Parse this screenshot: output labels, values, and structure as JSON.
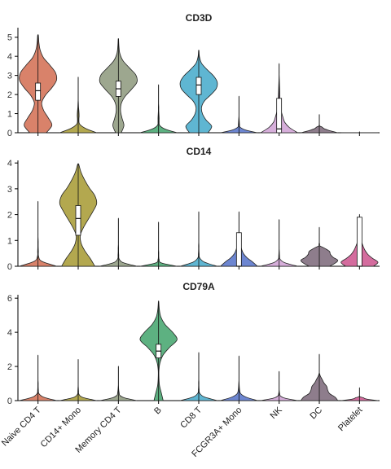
{
  "chart_data": {
    "type": "violin",
    "categories": [
      "Naive CD4 T",
      "CD14+ Mono",
      "Memory CD4 T",
      "B",
      "CD8 T",
      "FCGR3A+ Mono",
      "NK",
      "DC",
      "Platelet"
    ],
    "colors": [
      "#D9826A",
      "#B3A84F",
      "#9DA78F",
      "#5DB181",
      "#5FB6D2",
      "#6D86D1",
      "#D6AEDA",
      "#8E7D8C",
      "#D46C9E"
    ],
    "grid": false,
    "legend": "none",
    "panels": [
      {
        "title": "CD3D",
        "ylim": [
          0,
          5.5
        ],
        "yticks": [
          0,
          1,
          2,
          3,
          4,
          5
        ],
        "violins": [
          {
            "category": "Naive CD4 T",
            "max": 5.1,
            "median": 2.2,
            "q1": 1.7,
            "q3": 2.6,
            "shape": [
              0.45,
              0.75,
              0.55,
              0.3,
              0.2,
              0.4,
              0.75,
              1.0,
              0.95,
              0.65,
              0.3,
              0.12,
              0.05,
              0.02
            ],
            "box": true
          },
          {
            "category": "CD14+ Mono",
            "max": 2.9,
            "median": 0.0,
            "q1": 0.0,
            "q3": 0.0,
            "shape": [
              1.0,
              0.4,
              0.08,
              0.04,
              0.05,
              0.04,
              0.02,
              0.01,
              0,
              0,
              0,
              0,
              0,
              0
            ],
            "box": false
          },
          {
            "category": "Memory CD4 T",
            "max": 4.9,
            "median": 2.3,
            "q1": 1.9,
            "q3": 2.7,
            "shape": [
              0.15,
              0.3,
              0.2,
              0.12,
              0.15,
              0.35,
              0.7,
              1.0,
              0.95,
              0.6,
              0.25,
              0.08,
              0.03,
              0.01
            ],
            "box": true
          },
          {
            "category": "B",
            "max": 2.5,
            "median": 0.0,
            "q1": 0.0,
            "q3": 0.0,
            "shape": [
              1.0,
              0.35,
              0.06,
              0.03,
              0.03,
              0.02,
              0.01,
              0.01,
              0,
              0,
              0,
              0,
              0,
              0
            ],
            "box": false
          },
          {
            "category": "CD8 T",
            "max": 4.3,
            "median": 2.5,
            "q1": 2.0,
            "q3": 2.9,
            "shape": [
              0.5,
              0.7,
              0.4,
              0.2,
              0.15,
              0.3,
              0.65,
              0.95,
              1.0,
              0.8,
              0.45,
              0.15,
              0.04,
              0.01
            ],
            "box": true
          },
          {
            "category": "FCGR3A+ Mono",
            "max": 1.9,
            "median": 0.0,
            "q1": 0.0,
            "q3": 0.0,
            "shape": [
              1.0,
              0.35,
              0.06,
              0.03,
              0.02,
              0.01,
              0,
              0,
              0,
              0,
              0,
              0,
              0,
              0
            ],
            "box": false
          },
          {
            "category": "NK",
            "max": 3.6,
            "median": 0.2,
            "q1": 0.0,
            "q3": 1.8,
            "shape": [
              1.0,
              0.55,
              0.3,
              0.2,
              0.12,
              0.08,
              0.05,
              0.04,
              0.03,
              0.02,
              0.01,
              0,
              0,
              0
            ],
            "box": true
          },
          {
            "category": "DC",
            "max": 0.95,
            "median": 0.0,
            "q1": 0.0,
            "q3": 0.0,
            "shape": [
              1.0,
              0.7,
              0.45,
              0.25,
              0.15,
              0,
              0,
              0,
              0,
              0,
              0,
              0,
              0,
              0
            ],
            "box": false
          },
          {
            "category": "Platelet",
            "max": 0.05,
            "median": 0.0,
            "q1": 0.0,
            "q3": 0.0,
            "shape": [
              1.0,
              0,
              0,
              0,
              0,
              0,
              0,
              0,
              0,
              0,
              0,
              0,
              0,
              0
            ],
            "box": false
          }
        ]
      },
      {
        "title": "CD14",
        "ylim": [
          0,
          4.1
        ],
        "yticks": [
          0,
          1,
          2,
          3,
          4
        ],
        "violins": [
          {
            "category": "Naive CD4 T",
            "max": 2.5,
            "median": 0.0,
            "q1": 0.0,
            "q3": 0.0,
            "shape": [
              1.0,
              0.2,
              0.03,
              0.02,
              0.01,
              0.01,
              0,
              0,
              0,
              0,
              0,
              0,
              0,
              0
            ],
            "box": false
          },
          {
            "category": "CD14+ Mono",
            "max": 3.95,
            "median": 1.85,
            "q1": 1.2,
            "q3": 2.35,
            "shape": [
              0.9,
              0.65,
              0.35,
              0.15,
              0.12,
              0.3,
              0.55,
              0.8,
              1.0,
              0.9,
              0.6,
              0.35,
              0.15,
              0.03
            ],
            "box": true
          },
          {
            "category": "Memory CD4 T",
            "max": 1.85,
            "median": 0.0,
            "q1": 0.0,
            "q3": 0.0,
            "shape": [
              1.0,
              0.25,
              0.04,
              0.02,
              0.01,
              0.01,
              0,
              0,
              0,
              0,
              0,
              0,
              0,
              0
            ],
            "box": false
          },
          {
            "category": "B",
            "max": 1.7,
            "median": 0.0,
            "q1": 0.0,
            "q3": 0.0,
            "shape": [
              1.0,
              0.15,
              0.03,
              0.01,
              0.01,
              0,
              0,
              0,
              0,
              0,
              0,
              0,
              0,
              0
            ],
            "box": false
          },
          {
            "category": "CD8 T",
            "max": 2.1,
            "median": 0.0,
            "q1": 0.0,
            "q3": 0.0,
            "shape": [
              1.0,
              0.3,
              0.05,
              0.02,
              0.01,
              0.01,
              0,
              0,
              0,
              0,
              0,
              0,
              0,
              0
            ],
            "box": false
          },
          {
            "category": "FCGR3A+ Mono",
            "max": 2.1,
            "median": 0.0,
            "q1": 0.0,
            "q3": 1.3,
            "shape": [
              1.0,
              0.75,
              0.45,
              0.25,
              0.15,
              0.1,
              0.05,
              0.02,
              0,
              0,
              0,
              0,
              0,
              0
            ],
            "box": true
          },
          {
            "category": "NK",
            "max": 1.8,
            "median": 0.0,
            "q1": 0.0,
            "q3": 0.0,
            "shape": [
              1.0,
              0.3,
              0.05,
              0.02,
              0.01,
              0,
              0,
              0,
              0,
              0,
              0,
              0,
              0,
              0
            ],
            "box": false
          },
          {
            "category": "DC",
            "max": 1.5,
            "median": 0.0,
            "q1": 0.0,
            "q3": 0.0,
            "shape": [
              0.55,
              0.85,
              1.0,
              0.75,
              0.6,
              0.55,
              0.3,
              0,
              0,
              0,
              0,
              0,
              0,
              0
            ],
            "box": false
          },
          {
            "category": "Platelet",
            "max": 2.0,
            "median": 0.0,
            "q1": 0.0,
            "q3": 1.9,
            "shape": [
              0.75,
              1.0,
              0.7,
              0.45,
              0.3,
              0.2,
              0.12,
              0.08,
              0.05,
              0.03,
              0,
              0,
              0,
              0
            ],
            "box": true
          }
        ]
      },
      {
        "title": "CD79A",
        "ylim": [
          0,
          6.2
        ],
        "yticks": [
          0,
          2,
          4,
          6
        ],
        "violins": [
          {
            "category": "Naive CD4 T",
            "max": 2.65,
            "median": 0.0,
            "q1": 0.0,
            "q3": 0.0,
            "shape": [
              1.0,
              0.3,
              0.05,
              0.02,
              0.01,
              0.01,
              0,
              0,
              0,
              0,
              0,
              0,
              0,
              0
            ],
            "box": false
          },
          {
            "category": "CD14+ Mono",
            "max": 2.4,
            "median": 0.0,
            "q1": 0.0,
            "q3": 0.0,
            "shape": [
              1.0,
              0.25,
              0.04,
              0.02,
              0.01,
              0,
              0,
              0,
              0,
              0,
              0,
              0,
              0,
              0
            ],
            "box": false
          },
          {
            "category": "Memory CD4 T",
            "max": 2.0,
            "median": 0.0,
            "q1": 0.0,
            "q3": 0.0,
            "shape": [
              1.0,
              0.35,
              0.08,
              0.04,
              0.02,
              0.01,
              0,
              0,
              0,
              0,
              0,
              0,
              0,
              0
            ],
            "box": false
          },
          {
            "category": "B",
            "max": 5.8,
            "median": 2.9,
            "q1": 2.5,
            "q3": 3.3,
            "shape": [
              0.25,
              0.15,
              0.05,
              0.02,
              0.02,
              0.08,
              0.25,
              0.6,
              1.0,
              0.75,
              0.35,
              0.12,
              0.04,
              0.01
            ],
            "box": true
          },
          {
            "category": "CD8 T",
            "max": 2.8,
            "median": 0.0,
            "q1": 0.0,
            "q3": 0.0,
            "shape": [
              1.0,
              0.3,
              0.05,
              0.02,
              0.01,
              0.01,
              0,
              0,
              0,
              0,
              0,
              0,
              0,
              0
            ],
            "box": false
          },
          {
            "category": "FCGR3A+ Mono",
            "max": 2.6,
            "median": 0.0,
            "q1": 0.0,
            "q3": 0.0,
            "shape": [
              1.0,
              0.4,
              0.1,
              0.04,
              0.02,
              0.01,
              0,
              0,
              0,
              0,
              0,
              0,
              0,
              0
            ],
            "box": false
          },
          {
            "category": "NK",
            "max": 1.7,
            "median": 0.0,
            "q1": 0.0,
            "q3": 0.0,
            "shape": [
              1.0,
              0.35,
              0.08,
              0.03,
              0.01,
              0,
              0,
              0,
              0,
              0,
              0,
              0,
              0,
              0
            ],
            "box": false
          },
          {
            "category": "DC",
            "max": 2.7,
            "median": 0.0,
            "q1": 0.0,
            "q3": 0.0,
            "shape": [
              1.0,
              0.85,
              0.55,
              0.45,
              0.4,
              0.25,
              0.15,
              0.05,
              0,
              0,
              0,
              0,
              0,
              0
            ],
            "box": false
          },
          {
            "category": "Platelet",
            "max": 0.75,
            "median": 0.0,
            "q1": 0.0,
            "q3": 0.0,
            "shape": [
              1.0,
              0.55,
              0.3,
              0.2,
              0,
              0,
              0,
              0,
              0,
              0,
              0,
              0,
              0,
              0
            ],
            "box": false
          }
        ]
      }
    ]
  }
}
